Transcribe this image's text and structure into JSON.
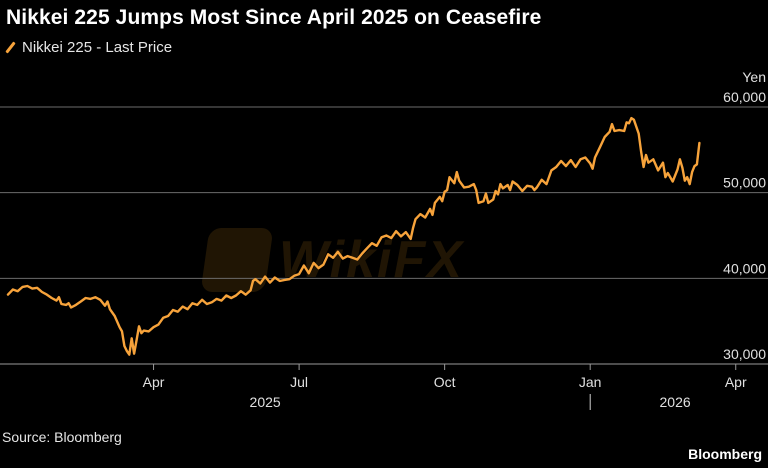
{
  "header": {
    "title": "Nikkei 225 Jumps Most Since April 2025 on Ceasefire"
  },
  "legend": {
    "label": "Nikkei 225 - Last Price"
  },
  "footer": {
    "source": "Source: Bloomberg",
    "brand": "Bloomberg"
  },
  "watermark": {
    "text": "WikiFX"
  },
  "colors": {
    "line": "#f7a33b",
    "grid": "#6b6b6b",
    "background": "#000000"
  },
  "chart_data": {
    "type": "line",
    "title": "Nikkei 225 Jumps Most Since April 2025 on Ceasefire",
    "ylabel": "Yen",
    "ylim": [
      28000,
      63000
    ],
    "yticks": [
      30000,
      40000,
      50000,
      60000
    ],
    "ytick_labels": [
      "30,000",
      "40,000",
      "50,000",
      "60,000"
    ],
    "grid": true,
    "legend_position": "top-left",
    "x_ticks": [
      {
        "label": "Apr",
        "t": 3
      },
      {
        "label": "Jul",
        "t": 6
      },
      {
        "label": "Oct",
        "t": 9
      },
      {
        "label": "Jan",
        "t": 12
      },
      {
        "label": "Apr",
        "t": 15
      }
    ],
    "year_labels": [
      {
        "label": "2025",
        "t": 5.3
      },
      {
        "label": "2026",
        "t": 13.75
      }
    ],
    "year_separator_t": 12,
    "x_range": [
      0,
      15.5
    ],
    "series": [
      {
        "name": "Nikkei 225 - Last Price",
        "points": [
          [
            0.0,
            38100
          ],
          [
            0.1,
            38700
          ],
          [
            0.2,
            38500
          ],
          [
            0.3,
            39000
          ],
          [
            0.4,
            39100
          ],
          [
            0.5,
            38800
          ],
          [
            0.6,
            38900
          ],
          [
            0.7,
            38400
          ],
          [
            0.8,
            38100
          ],
          [
            0.9,
            37700
          ],
          [
            1.0,
            37400
          ],
          [
            1.05,
            37800
          ],
          [
            1.1,
            37000
          ],
          [
            1.2,
            36900
          ],
          [
            1.25,
            37100
          ],
          [
            1.3,
            36600
          ],
          [
            1.4,
            36900
          ],
          [
            1.5,
            37300
          ],
          [
            1.6,
            37700
          ],
          [
            1.7,
            37600
          ],
          [
            1.8,
            37800
          ],
          [
            1.9,
            37500
          ],
          [
            2.0,
            36800
          ],
          [
            2.05,
            37300
          ],
          [
            2.1,
            36400
          ],
          [
            2.2,
            35600
          ],
          [
            2.3,
            34300
          ],
          [
            2.35,
            33800
          ],
          [
            2.4,
            32100
          ],
          [
            2.45,
            31500
          ],
          [
            2.5,
            31100
          ],
          [
            2.55,
            33000
          ],
          [
            2.6,
            31200
          ],
          [
            2.65,
            32800
          ],
          [
            2.7,
            34400
          ],
          [
            2.75,
            33600
          ],
          [
            2.8,
            33900
          ],
          [
            2.9,
            33800
          ],
          [
            3.0,
            34300
          ],
          [
            3.1,
            34600
          ],
          [
            3.2,
            35400
          ],
          [
            3.3,
            35600
          ],
          [
            3.4,
            36300
          ],
          [
            3.5,
            36100
          ],
          [
            3.6,
            36700
          ],
          [
            3.7,
            36400
          ],
          [
            3.8,
            37100
          ],
          [
            3.9,
            36900
          ],
          [
            4.0,
            37500
          ],
          [
            4.1,
            37000
          ],
          [
            4.2,
            37200
          ],
          [
            4.3,
            37600
          ],
          [
            4.4,
            37400
          ],
          [
            4.5,
            38000
          ],
          [
            4.6,
            37700
          ],
          [
            4.7,
            38000
          ],
          [
            4.8,
            38500
          ],
          [
            4.9,
            38100
          ],
          [
            5.0,
            38600
          ],
          [
            5.05,
            39700
          ],
          [
            5.1,
            39900
          ],
          [
            5.2,
            39400
          ],
          [
            5.3,
            40200
          ],
          [
            5.4,
            39500
          ],
          [
            5.5,
            40100
          ],
          [
            5.6,
            39700
          ],
          [
            5.7,
            39800
          ],
          [
            5.8,
            39900
          ],
          [
            5.9,
            40300
          ],
          [
            6.0,
            40500
          ],
          [
            6.1,
            41500
          ],
          [
            6.2,
            40600
          ],
          [
            6.3,
            41800
          ],
          [
            6.4,
            41200
          ],
          [
            6.5,
            41600
          ],
          [
            6.6,
            42800
          ],
          [
            6.7,
            42400
          ],
          [
            6.8,
            43100
          ],
          [
            6.9,
            42300
          ],
          [
            7.0,
            42600
          ],
          [
            7.1,
            42400
          ],
          [
            7.2,
            42200
          ],
          [
            7.3,
            42900
          ],
          [
            7.4,
            43500
          ],
          [
            7.5,
            44100
          ],
          [
            7.6,
            43800
          ],
          [
            7.7,
            44800
          ],
          [
            7.8,
            45000
          ],
          [
            7.9,
            44700
          ],
          [
            8.0,
            45500
          ],
          [
            8.1,
            44900
          ],
          [
            8.2,
            45400
          ],
          [
            8.3,
            44600
          ],
          [
            8.35,
            45900
          ],
          [
            8.4,
            46900
          ],
          [
            8.5,
            47500
          ],
          [
            8.6,
            47100
          ],
          [
            8.7,
            48100
          ],
          [
            8.75,
            47400
          ],
          [
            8.8,
            48800
          ],
          [
            8.9,
            49500
          ],
          [
            8.95,
            49000
          ],
          [
            9.0,
            50100
          ],
          [
            9.05,
            50300
          ],
          [
            9.1,
            51800
          ],
          [
            9.2,
            51100
          ],
          [
            9.25,
            52400
          ],
          [
            9.3,
            51400
          ],
          [
            9.4,
            50600
          ],
          [
            9.5,
            50700
          ],
          [
            9.6,
            51000
          ],
          [
            9.65,
            50300
          ],
          [
            9.7,
            48800
          ],
          [
            9.8,
            49000
          ],
          [
            9.85,
            49900
          ],
          [
            9.9,
            48800
          ],
          [
            10.0,
            49200
          ],
          [
            10.05,
            50200
          ],
          [
            10.1,
            49800
          ],
          [
            10.15,
            51000
          ],
          [
            10.2,
            50500
          ],
          [
            10.3,
            50900
          ],
          [
            10.35,
            50300
          ],
          [
            10.4,
            51300
          ],
          [
            10.5,
            50900
          ],
          [
            10.6,
            50200
          ],
          [
            10.7,
            50800
          ],
          [
            10.8,
            50700
          ],
          [
            10.85,
            50300
          ],
          [
            10.9,
            50600
          ],
          [
            11.0,
            51500
          ],
          [
            11.1,
            51000
          ],
          [
            11.2,
            52600
          ],
          [
            11.3,
            53000
          ],
          [
            11.4,
            53700
          ],
          [
            11.5,
            53100
          ],
          [
            11.6,
            53800
          ],
          [
            11.7,
            53000
          ],
          [
            11.8,
            53900
          ],
          [
            11.9,
            54100
          ],
          [
            12.0,
            53400
          ],
          [
            12.05,
            52800
          ],
          [
            12.1,
            54100
          ],
          [
            12.2,
            55300
          ],
          [
            12.3,
            56500
          ],
          [
            12.4,
            57100
          ],
          [
            12.45,
            58000
          ],
          [
            12.5,
            57200
          ],
          [
            12.6,
            57300
          ],
          [
            12.7,
            57200
          ],
          [
            12.75,
            58200
          ],
          [
            12.8,
            58100
          ],
          [
            12.85,
            58700
          ],
          [
            12.9,
            58500
          ],
          [
            13.0,
            56900
          ],
          [
            13.05,
            54800
          ],
          [
            13.1,
            53000
          ],
          [
            13.15,
            54400
          ],
          [
            13.2,
            53500
          ],
          [
            13.3,
            53900
          ],
          [
            13.4,
            52600
          ],
          [
            13.5,
            53500
          ],
          [
            13.55,
            51800
          ],
          [
            13.6,
            52300
          ],
          [
            13.7,
            51300
          ],
          [
            13.8,
            52700
          ],
          [
            13.85,
            53900
          ],
          [
            13.9,
            52900
          ],
          [
            13.95,
            51400
          ],
          [
            14.0,
            51800
          ],
          [
            14.05,
            51000
          ],
          [
            14.1,
            52400
          ],
          [
            14.15,
            53100
          ],
          [
            14.2,
            53300
          ],
          [
            14.25,
            55800
          ]
        ]
      }
    ]
  }
}
